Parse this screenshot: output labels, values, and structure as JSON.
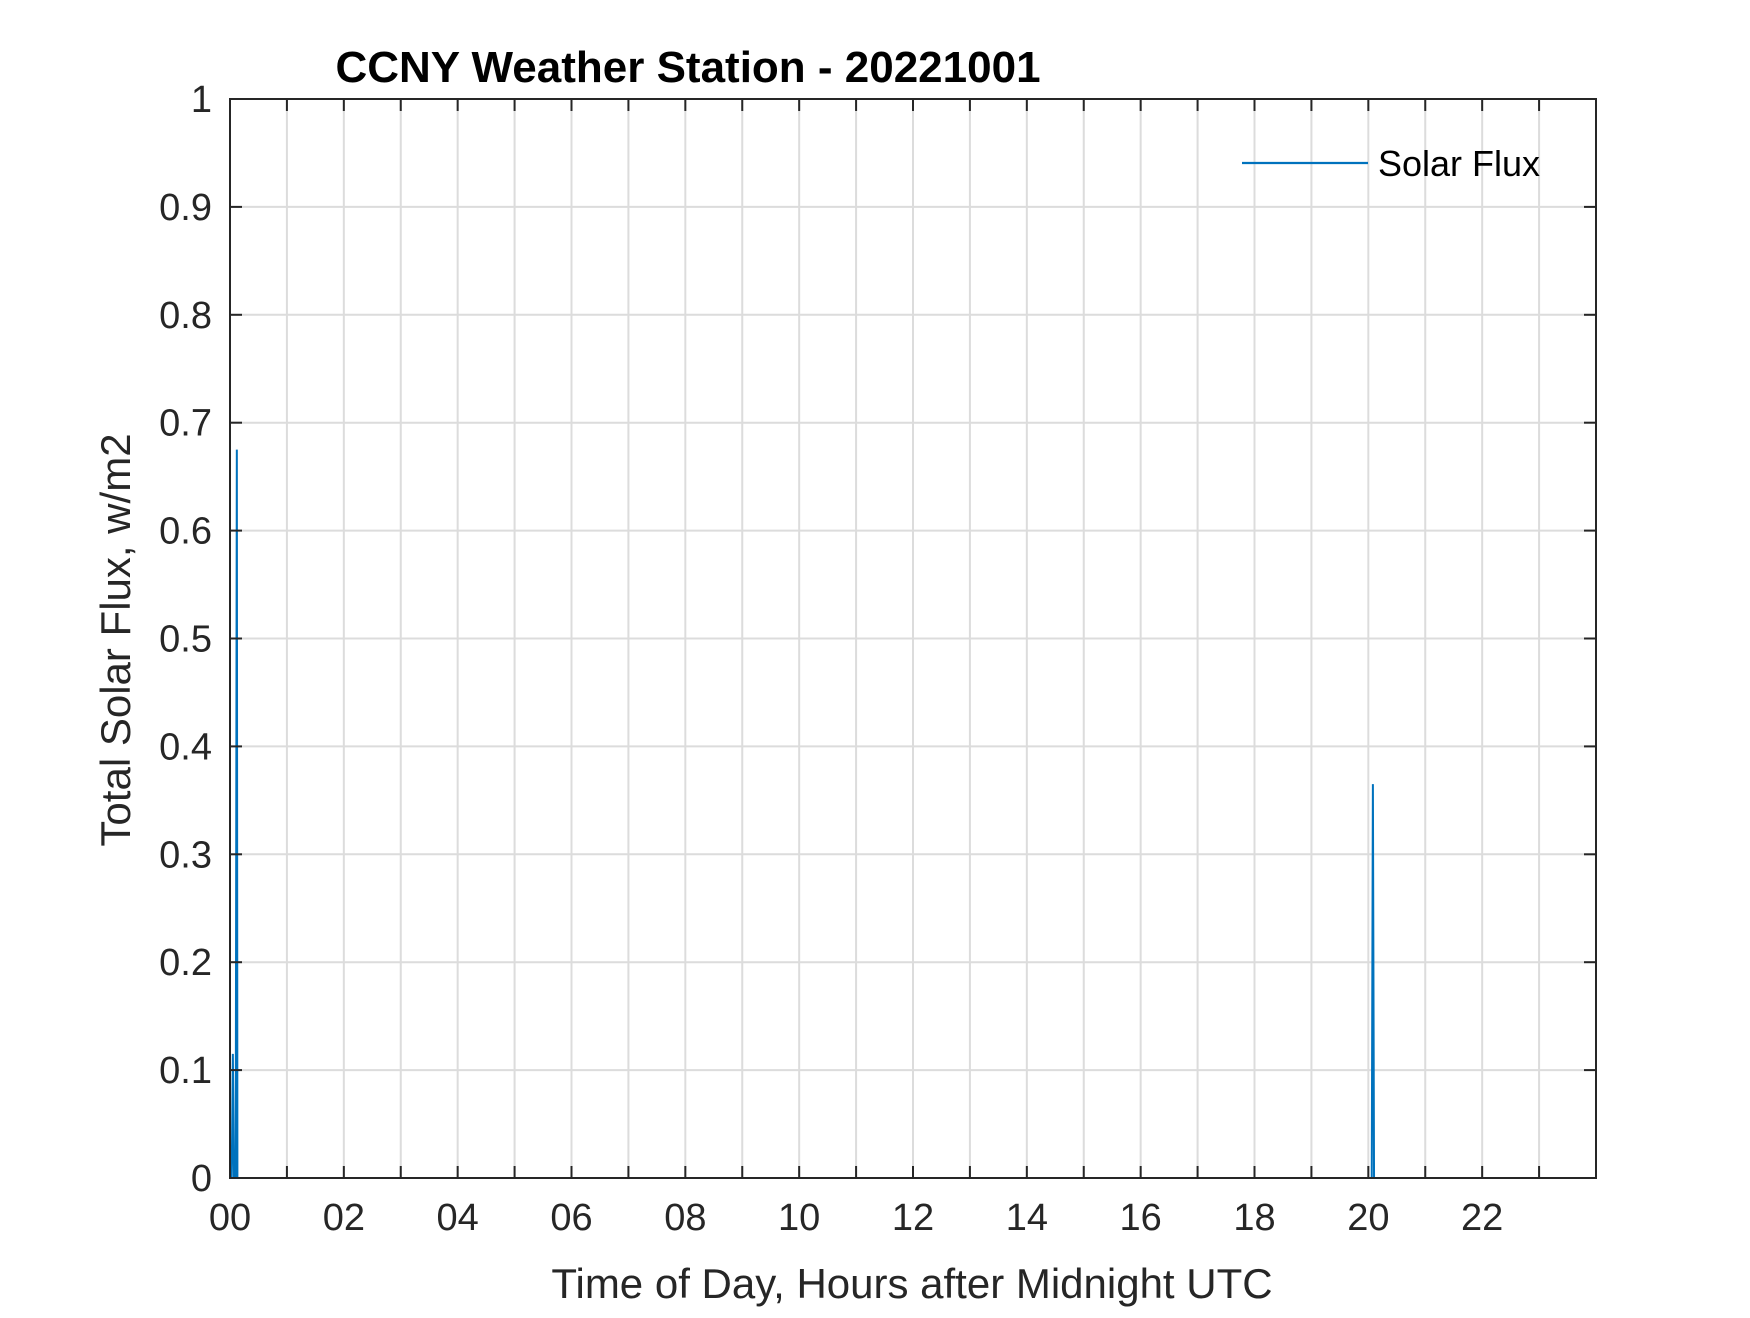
{
  "chart_data": {
    "type": "line",
    "title": "CCNY Weather Station - 20221001",
    "xlabel": "Time of Day, Hours after Midnight UTC",
    "ylabel": "Total Solar Flux, w/m2",
    "xlim": [
      0,
      24
    ],
    "ylim": [
      0,
      1
    ],
    "xticks": [
      0,
      2,
      4,
      6,
      8,
      10,
      12,
      14,
      16,
      18,
      20,
      22
    ],
    "xtick_labels": [
      "00",
      "02",
      "04",
      "06",
      "08",
      "10",
      "12",
      "14",
      "16",
      "18",
      "20",
      "22"
    ],
    "yticks": [
      0,
      0.1,
      0.2,
      0.3,
      0.4,
      0.5,
      0.6,
      0.7,
      0.8,
      0.9,
      1
    ],
    "ytick_labels": [
      "0",
      "0.1",
      "0.2",
      "0.3",
      "0.4",
      "0.5",
      "0.6",
      "0.7",
      "0.8",
      "0.9",
      "1"
    ],
    "minor_xgrid_step": 1,
    "grid": true,
    "legend_position": "top-right",
    "series": [
      {
        "name": "Solar Flux",
        "color": "#0072BD",
        "x": [
          0.0,
          0.03,
          0.05,
          0.07,
          0.1,
          0.12,
          0.13,
          20.06,
          20.08,
          20.1,
          20.12
        ],
        "y": [
          0,
          0,
          0.115,
          0,
          0,
          0.675,
          0,
          0,
          0.365,
          0,
          0
        ]
      }
    ]
  }
}
